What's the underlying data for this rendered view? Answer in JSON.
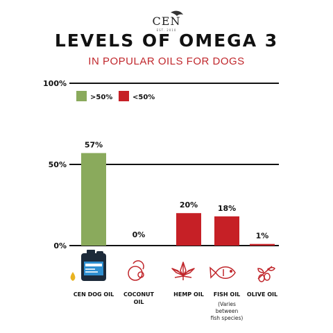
{
  "header": {
    "logo_text": "CEN",
    "logo_sub": "EST. 2010",
    "title": "LEVELS OF OMEGA 3",
    "subtitle": "IN POPULAR OILS FOR DOGS"
  },
  "chart_data": {
    "type": "bar",
    "title": "LEVELS OF OMEGA 3",
    "subtitle": "IN POPULAR OILS FOR DOGS",
    "categories": [
      "CEN DOG OIL",
      "COCONUT OIL",
      "HEMP OIL",
      "FISH OIL",
      "OLIVE OIL"
    ],
    "values": [
      57,
      0,
      20,
      18,
      1
    ],
    "value_labels": [
      "57%",
      "0%",
      "20%",
      "18%",
      "1%"
    ],
    "ylim": [
      0,
      100
    ],
    "yticks": [
      0,
      50,
      100
    ],
    "ytick_labels": [
      "0%",
      "50%",
      "100%"
    ],
    "grid": "horizontal lines at ticks",
    "legend": {
      "placement": "top-left",
      "entries": [
        {
          "label": ">50%",
          "color": "#8aaa5c"
        },
        {
          "label": "<50%",
          "color": "#c62026"
        }
      ]
    },
    "threshold": 50,
    "colors": {
      "above": "#8aaa5c",
      "below": "#c62026"
    },
    "annotations": [
      {
        "category": "FISH OIL",
        "text_lines": [
          "(Varies",
          "between",
          "fish species)"
        ]
      }
    ],
    "icons": [
      "oil-bottle-icon",
      "coconut-icon",
      "hemp-leaf-icon",
      "fish-icon",
      "olive-branch-icon"
    ]
  }
}
